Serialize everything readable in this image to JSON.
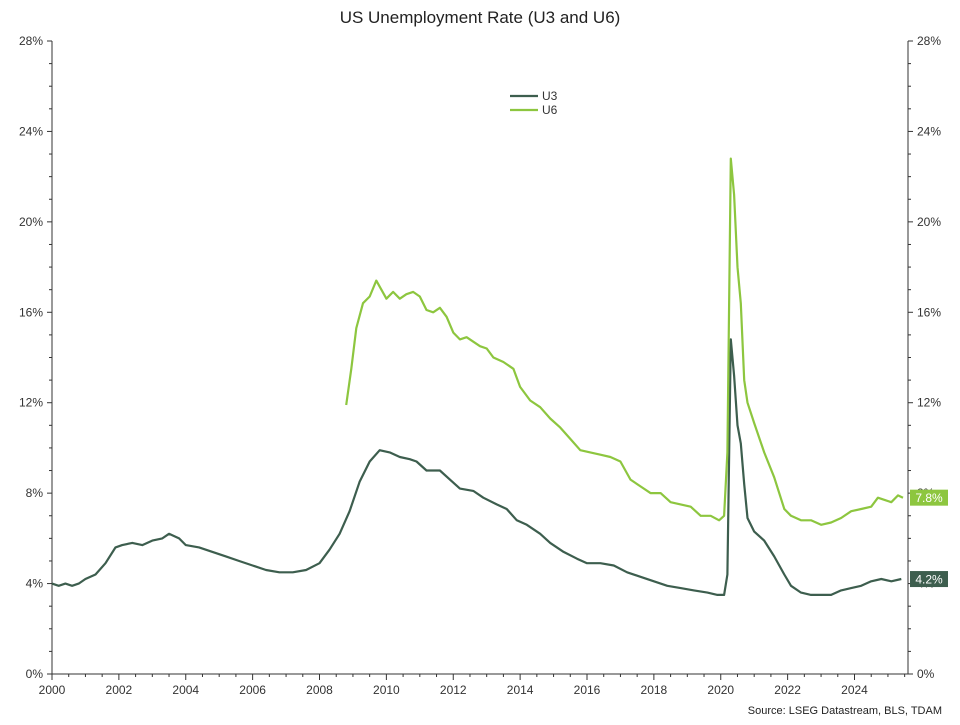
{
  "chart_data": {
    "type": "line",
    "title": "US Unemployment Rate (U3 and U6)",
    "source": "Source: LSEG Datastream, BLS, TDAM",
    "xlabel": "",
    "ylabel": "",
    "xlim": [
      2000,
      2025.6
    ],
    "ylim": [
      0,
      28
    ],
    "y_ticks": [
      0,
      4,
      8,
      12,
      16,
      20,
      24,
      28
    ],
    "y_tick_labels": [
      "0%",
      "4%",
      "8%",
      "12%",
      "16%",
      "20%",
      "24%",
      "28%"
    ],
    "x_ticks": [
      2000,
      2002,
      2004,
      2006,
      2008,
      2010,
      2012,
      2014,
      2016,
      2018,
      2020,
      2022,
      2024
    ],
    "x_tick_labels": [
      "2000",
      "2002",
      "2004",
      "2006",
      "2008",
      "2010",
      "2012",
      "2014",
      "2016",
      "2018",
      "2020",
      "2022",
      "2024"
    ],
    "grid": false,
    "legend_position": "top-center",
    "series": [
      {
        "name": "U3",
        "color": "#3d5e4e",
        "end_label": "4.2%",
        "x": [
          2000.0,
          2000.2,
          2000.4,
          2000.6,
          2000.8,
          2001.0,
          2001.3,
          2001.6,
          2001.9,
          2002.1,
          2002.4,
          2002.7,
          2003.0,
          2003.3,
          2003.5,
          2003.8,
          2004.0,
          2004.4,
          2004.8,
          2005.2,
          2005.6,
          2006.0,
          2006.4,
          2006.8,
          2007.2,
          2007.6,
          2008.0,
          2008.3,
          2008.6,
          2008.9,
          2009.2,
          2009.5,
          2009.8,
          2010.1,
          2010.4,
          2010.7,
          2010.9,
          2011.2,
          2011.6,
          2011.9,
          2012.2,
          2012.6,
          2012.9,
          2013.3,
          2013.6,
          2013.9,
          2014.2,
          2014.6,
          2014.9,
          2015.3,
          2015.7,
          2016.0,
          2016.4,
          2016.8,
          2017.2,
          2017.6,
          2018.0,
          2018.4,
          2018.8,
          2019.2,
          2019.6,
          2019.9,
          2020.1,
          2020.2,
          2020.3,
          2020.4,
          2020.5,
          2020.6,
          2020.7,
          2020.8,
          2021.0,
          2021.3,
          2021.6,
          2021.9,
          2022.1,
          2022.4,
          2022.7,
          2023.0,
          2023.3,
          2023.6,
          2023.9,
          2024.2,
          2024.5,
          2024.8,
          2025.1,
          2025.4
        ],
        "values": [
          4.0,
          3.9,
          4.0,
          3.9,
          4.0,
          4.2,
          4.4,
          4.9,
          5.6,
          5.7,
          5.8,
          5.7,
          5.9,
          6.0,
          6.2,
          6.0,
          5.7,
          5.6,
          5.4,
          5.2,
          5.0,
          4.8,
          4.6,
          4.5,
          4.5,
          4.6,
          4.9,
          5.5,
          6.2,
          7.2,
          8.5,
          9.4,
          9.9,
          9.8,
          9.6,
          9.5,
          9.4,
          9.0,
          9.0,
          8.6,
          8.2,
          8.1,
          7.8,
          7.5,
          7.3,
          6.8,
          6.6,
          6.2,
          5.8,
          5.4,
          5.1,
          4.9,
          4.9,
          4.8,
          4.5,
          4.3,
          4.1,
          3.9,
          3.8,
          3.7,
          3.6,
          3.5,
          3.5,
          4.4,
          14.8,
          13.2,
          11.0,
          10.2,
          8.4,
          6.9,
          6.3,
          5.9,
          5.2,
          4.4,
          3.9,
          3.6,
          3.5,
          3.5,
          3.5,
          3.7,
          3.8,
          3.9,
          4.1,
          4.2,
          4.1,
          4.2
        ]
      },
      {
        "name": "U6",
        "color": "#8dc63f",
        "end_label": "7.8%",
        "x": [
          2008.8,
          2008.95,
          2009.1,
          2009.3,
          2009.5,
          2009.7,
          2009.85,
          2010.0,
          2010.2,
          2010.4,
          2010.6,
          2010.8,
          2011.0,
          2011.2,
          2011.4,
          2011.6,
          2011.8,
          2012.0,
          2012.2,
          2012.4,
          2012.6,
          2012.8,
          2013.0,
          2013.2,
          2013.5,
          2013.8,
          2014.0,
          2014.3,
          2014.6,
          2014.9,
          2015.2,
          2015.5,
          2015.8,
          2016.1,
          2016.4,
          2016.7,
          2017.0,
          2017.3,
          2017.6,
          2017.9,
          2018.2,
          2018.5,
          2018.8,
          2019.1,
          2019.4,
          2019.7,
          2019.95,
          2020.1,
          2020.2,
          2020.3,
          2020.4,
          2020.5,
          2020.6,
          2020.7,
          2020.8,
          2021.0,
          2021.3,
          2021.6,
          2021.9,
          2022.1,
          2022.4,
          2022.7,
          2023.0,
          2023.3,
          2023.6,
          2023.9,
          2024.2,
          2024.5,
          2024.7,
          2024.9,
          2025.1,
          2025.3,
          2025.45
        ],
        "values": [
          11.9,
          13.5,
          15.3,
          16.4,
          16.7,
          17.4,
          17.0,
          16.6,
          16.9,
          16.6,
          16.8,
          16.9,
          16.7,
          16.1,
          16.0,
          16.2,
          15.8,
          15.1,
          14.8,
          14.9,
          14.7,
          14.5,
          14.4,
          14.0,
          13.8,
          13.5,
          12.7,
          12.1,
          11.8,
          11.3,
          10.9,
          10.4,
          9.9,
          9.8,
          9.7,
          9.6,
          9.4,
          8.6,
          8.3,
          8.0,
          8.0,
          7.6,
          7.5,
          7.4,
          7.0,
          7.0,
          6.8,
          7.0,
          9.8,
          22.8,
          21.2,
          18.0,
          16.4,
          13.0,
          12.0,
          11.1,
          9.8,
          8.7,
          7.3,
          7.0,
          6.8,
          6.8,
          6.6,
          6.7,
          6.9,
          7.2,
          7.3,
          7.4,
          7.8,
          7.7,
          7.6,
          7.9,
          7.8
        ]
      }
    ]
  }
}
